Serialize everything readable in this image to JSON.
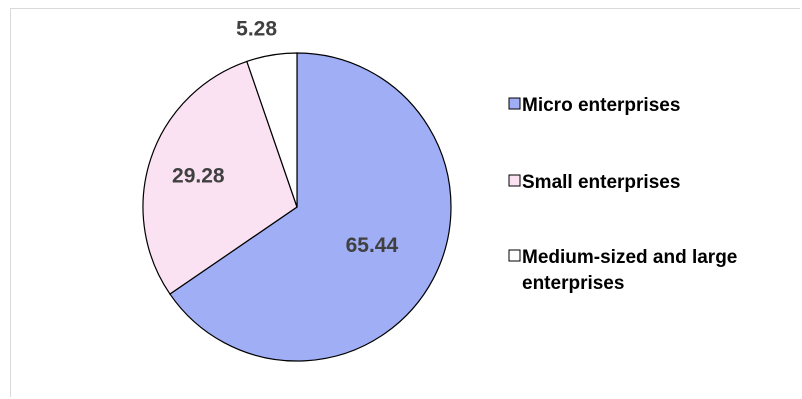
{
  "chart_data": {
    "type": "pie",
    "title": "",
    "slices": [
      {
        "label": "Micro enterprises",
        "value": 65.44,
        "value_label": "65.44",
        "color": "#a0aef5"
      },
      {
        "label": "Small enterprises",
        "value": 29.28,
        "value_label": "29.28",
        "color": "#fbe2f3"
      },
      {
        "label": "Medium-sized and large enterprises",
        "value": 5.28,
        "value_label": "5.28",
        "color": "#ffffff"
      }
    ],
    "legend_position": "right",
    "slice_border_color": "#000000",
    "label_color": "#404040"
  }
}
